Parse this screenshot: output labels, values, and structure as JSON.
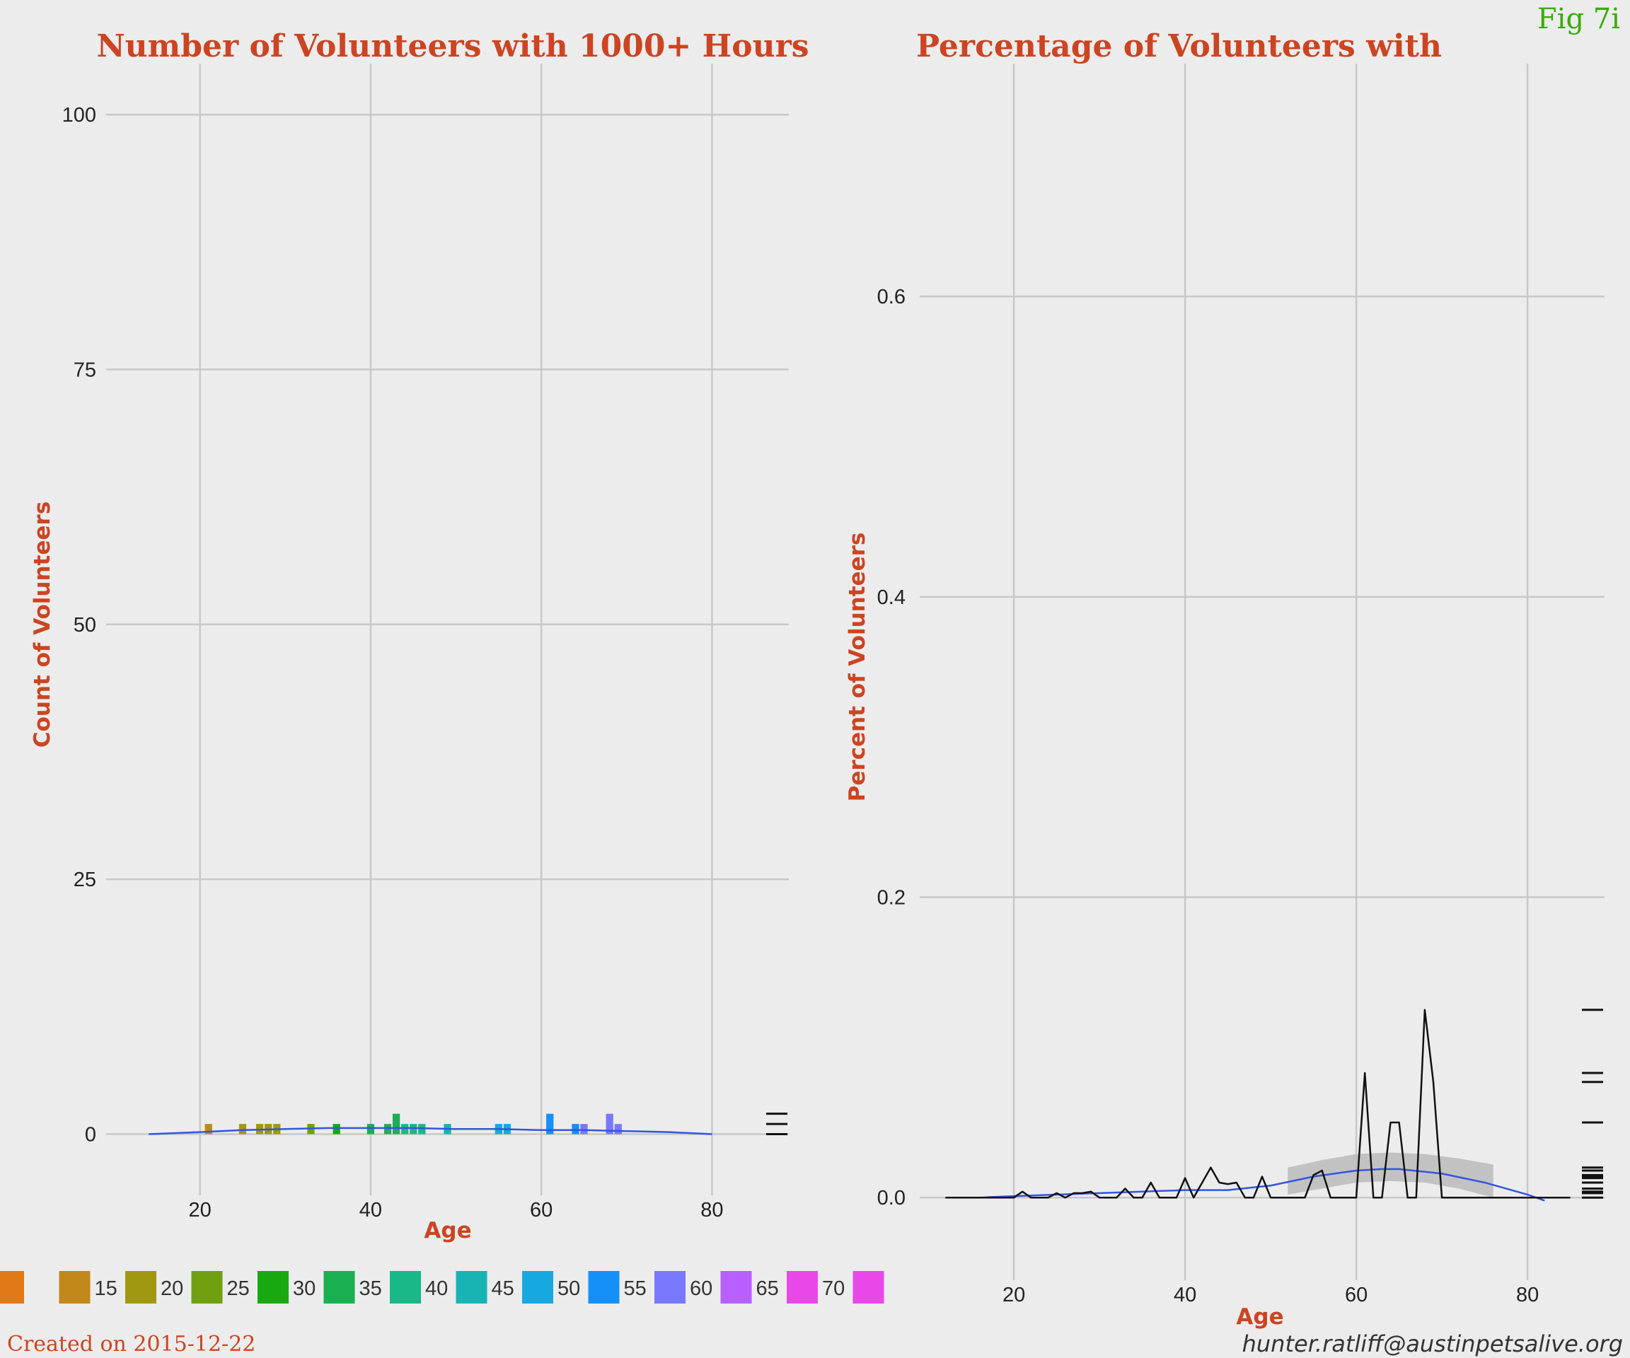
{
  "figure": {
    "fig_label": "Fig 7i",
    "created": "Created on 2015-12-22",
    "author_email": "hunter.ratliff@austinpetsalive.org"
  },
  "legend": {
    "labels": [
      "",
      "15",
      "20",
      "25",
      "30",
      "35",
      "40",
      "45",
      "50",
      "55",
      "60",
      "65",
      "70",
      ""
    ],
    "colors": [
      "#e07818",
      "#c08818",
      "#a09810",
      "#70a010",
      "#18a810",
      "#18b050",
      "#18b888",
      "#18b4b4",
      "#18a8e0",
      "#1490f8",
      "#7878ff",
      "#b860ff",
      "#e848e8",
      "#e848e8"
    ]
  },
  "chart_data": [
    {
      "type": "bar",
      "title": "Number of Volunteers with 1000+ Hours",
      "xlabel": "Age",
      "ylabel": "Count of Volunteers",
      "xlim": [
        9,
        89
      ],
      "ylim": [
        -6,
        105
      ],
      "xticks": [
        20,
        40,
        60,
        80
      ],
      "xtick_labels": [
        "20",
        "40",
        "60",
        "80"
      ],
      "yticks": [
        0,
        25,
        50,
        75,
        100
      ],
      "ytick_labels": [
        "0",
        "25",
        "50",
        "75",
        "100"
      ],
      "grid": true,
      "bars": {
        "x": [
          21,
          25,
          27,
          28,
          29,
          33,
          36,
          40,
          42,
          43,
          44,
          45,
          46,
          49,
          55,
          56,
          61,
          64,
          65,
          68,
          69
        ],
        "values": [
          1,
          1,
          1,
          1,
          1,
          1,
          1,
          1,
          1,
          2,
          1,
          1,
          1,
          1,
          1,
          1,
          2,
          1,
          1,
          2,
          1
        ],
        "colors": [
          "#c08818",
          "#a09810",
          "#a09810",
          "#a09810",
          "#a09810",
          "#70a010",
          "#18a810",
          "#18b050",
          "#18b050",
          "#18b050",
          "#18b888",
          "#18b888",
          "#18b888",
          "#18b4b4",
          "#18a8e0",
          "#18a8e0",
          "#1490f8",
          "#1490f8",
          "#7878ff",
          "#7878ff",
          "#7878ff"
        ]
      },
      "smooth": {
        "x": [
          14,
          20,
          25,
          30,
          35,
          40,
          45,
          50,
          55,
          60,
          65,
          70,
          75,
          80
        ],
        "y": [
          0.0,
          0.2,
          0.4,
          0.5,
          0.6,
          0.6,
          0.6,
          0.5,
          0.5,
          0.4,
          0.4,
          0.3,
          0.2,
          0.0
        ]
      },
      "rug_y": [
        0,
        1,
        2
      ]
    },
    {
      "type": "line",
      "title": "Percentage of Volunteers with",
      "xlabel": "Age",
      "ylabel": "Percent of Volunteers",
      "xlim": [
        9,
        89
      ],
      "ylim": [
        -0.055,
        0.755
      ],
      "xticks": [
        20,
        40,
        60,
        80
      ],
      "xtick_labels": [
        "20",
        "40",
        "60",
        "80"
      ],
      "yticks": [
        0.0,
        0.2,
        0.4,
        0.6
      ],
      "ytick_labels": [
        "0.0",
        "0.2",
        "0.4",
        "0.6"
      ],
      "grid": true,
      "series": {
        "x": [
          12,
          13,
          14,
          15,
          16,
          17,
          18,
          19,
          20,
          21,
          22,
          23,
          24,
          25,
          26,
          27,
          28,
          29,
          30,
          31,
          32,
          33,
          34,
          35,
          36,
          37,
          38,
          39,
          40,
          41,
          42,
          43,
          44,
          45,
          46,
          47,
          48,
          49,
          50,
          51,
          52,
          53,
          54,
          55,
          56,
          57,
          58,
          59,
          60,
          61,
          62,
          63,
          64,
          65,
          66,
          67,
          68,
          69,
          70,
          71,
          72,
          73,
          74,
          75,
          76,
          77,
          78,
          79,
          80,
          81,
          82,
          83,
          84,
          85
        ],
        "y": [
          0,
          0,
          0,
          0,
          0,
          0,
          0,
          0,
          0,
          0.004,
          0,
          0,
          0,
          0.003,
          0,
          0.003,
          0.003,
          0.004,
          0,
          0,
          0,
          0.006,
          0,
          0,
          0.01,
          0,
          0,
          0,
          0.013,
          0,
          0.01,
          0.02,
          0.01,
          0.009,
          0.01,
          0,
          0,
          0.014,
          0,
          0,
          0,
          0,
          0,
          0.015,
          0.018,
          0,
          0,
          0,
          0,
          0.083,
          0,
          0,
          0.05,
          0.05,
          0,
          0,
          0.125,
          0.077,
          0,
          0,
          0,
          0,
          0,
          0,
          0,
          0,
          0,
          0,
          0,
          0,
          0,
          0,
          0,
          0
        ]
      },
      "smooth": {
        "x": [
          16,
          20,
          25,
          30,
          35,
          40,
          45,
          50,
          55,
          60,
          63,
          65,
          70,
          75,
          80,
          82
        ],
        "y": [
          0.0,
          0.001,
          0.002,
          0.003,
          0.004,
          0.005,
          0.005,
          0.008,
          0.014,
          0.018,
          0.019,
          0.019,
          0.016,
          0.01,
          0.002,
          -0.002
        ]
      },
      "ribbon": {
        "x": [
          52,
          56,
          60,
          64,
          68,
          72,
          76
        ],
        "lower": [
          0.002,
          0.006,
          0.01,
          0.011,
          0.01,
          0.006,
          0.0
        ],
        "upper": [
          0.02,
          0.025,
          0.029,
          0.03,
          0.029,
          0.026,
          0.022
        ]
      },
      "rug_y": [
        0.0,
        0.003,
        0.004,
        0.006,
        0.01,
        0.013,
        0.014,
        0.015,
        0.018,
        0.02,
        0.05,
        0.077,
        0.083,
        0.125
      ]
    }
  ]
}
